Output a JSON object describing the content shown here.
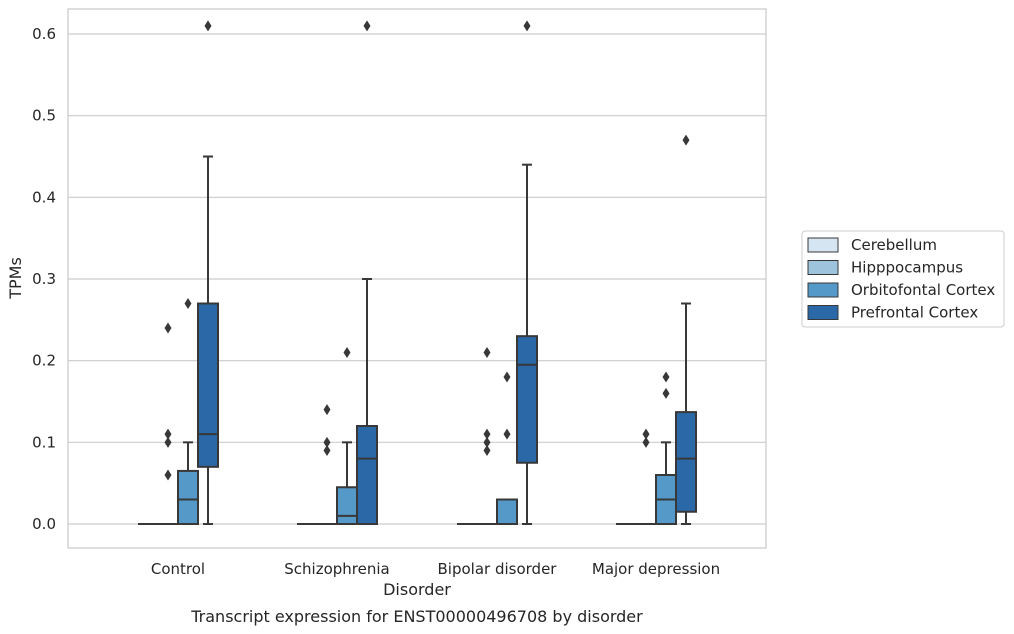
{
  "caption": "Transcript expression for ENST00000496708 by disorder",
  "chart_data": {
    "type": "boxplot",
    "xlabel": "Disorder",
    "ylabel": "TPMs",
    "ylim": [
      -0.03,
      0.64
    ],
    "yticks": [
      0.0,
      0.1,
      0.2,
      0.3,
      0.4,
      0.5,
      0.6
    ],
    "ytick_labels": [
      "0.0",
      "0.1",
      "0.2",
      "0.3",
      "0.4",
      "0.5",
      "0.6"
    ],
    "grid": "horizontal",
    "legend_position": "right",
    "categories": [
      "Control",
      "Schizophrenia",
      "Bipolar disorder",
      "Major depression"
    ],
    "hues": [
      {
        "name": "Cerebellum",
        "color": "#d6e5f2"
      },
      {
        "name": "Hipppocampus",
        "color": "#9dc3dd"
      },
      {
        "name": "Orbitofontal Cortex",
        "color": "#5499c7"
      },
      {
        "name": "Prefrontal Cortex",
        "color": "#2a68a8"
      }
    ],
    "boxes": [
      [
        {
          "q1": 0,
          "median": 0,
          "q3": 0,
          "whislo": 0,
          "whishi": 0,
          "fliers": []
        },
        {
          "q1": 0,
          "median": 0,
          "q3": 0,
          "whislo": 0,
          "whishi": 0,
          "fliers": [
            0.06,
            0.1,
            0.11,
            0.24
          ]
        },
        {
          "q1": 0,
          "median": 0.03,
          "q3": 0.065,
          "whislo": 0,
          "whishi": 0.1,
          "fliers": [
            0.27
          ]
        },
        {
          "q1": 0.07,
          "median": 0.11,
          "q3": 0.27,
          "whislo": 0,
          "whishi": 0.45,
          "fliers": [
            0.61
          ]
        }
      ],
      [
        {
          "q1": 0,
          "median": 0,
          "q3": 0,
          "whislo": 0,
          "whishi": 0,
          "fliers": []
        },
        {
          "q1": 0,
          "median": 0,
          "q3": 0,
          "whislo": 0,
          "whishi": 0,
          "fliers": [
            0.09,
            0.1,
            0.14
          ]
        },
        {
          "q1": 0,
          "median": 0.01,
          "q3": 0.045,
          "whislo": 0,
          "whishi": 0.1,
          "fliers": [
            0.21
          ]
        },
        {
          "q1": 0,
          "median": 0.08,
          "q3": 0.12,
          "whislo": 0,
          "whishi": 0.3,
          "fliers": [
            0.61
          ]
        }
      ],
      [
        {
          "q1": 0,
          "median": 0,
          "q3": 0,
          "whislo": 0,
          "whishi": 0,
          "fliers": []
        },
        {
          "q1": 0,
          "median": 0,
          "q3": 0,
          "whislo": 0,
          "whishi": 0,
          "fliers": [
            0.11,
            0.21,
            0.09,
            0.1
          ]
        },
        {
          "q1": 0,
          "median": 0,
          "q3": 0.03,
          "whislo": 0,
          "whishi": 0.03,
          "fliers": [
            0.11,
            0.18
          ]
        },
        {
          "q1": 0.075,
          "median": 0.195,
          "q3": 0.23,
          "whislo": 0,
          "whishi": 0.44,
          "fliers": [
            0.61
          ]
        }
      ],
      [
        {
          "q1": 0,
          "median": 0,
          "q3": 0,
          "whislo": 0,
          "whishi": 0,
          "fliers": []
        },
        {
          "q1": 0,
          "median": 0,
          "q3": 0,
          "whislo": 0,
          "whishi": 0,
          "fliers": [
            0.1,
            0.11
          ]
        },
        {
          "q1": 0,
          "median": 0.03,
          "q3": 0.06,
          "whislo": 0,
          "whishi": 0.1,
          "fliers": [
            0.16,
            0.18
          ]
        },
        {
          "q1": 0.015,
          "median": 0.08,
          "q3": 0.137,
          "whislo": 0,
          "whishi": 0.27,
          "fliers": [
            0.47
          ]
        }
      ]
    ]
  }
}
